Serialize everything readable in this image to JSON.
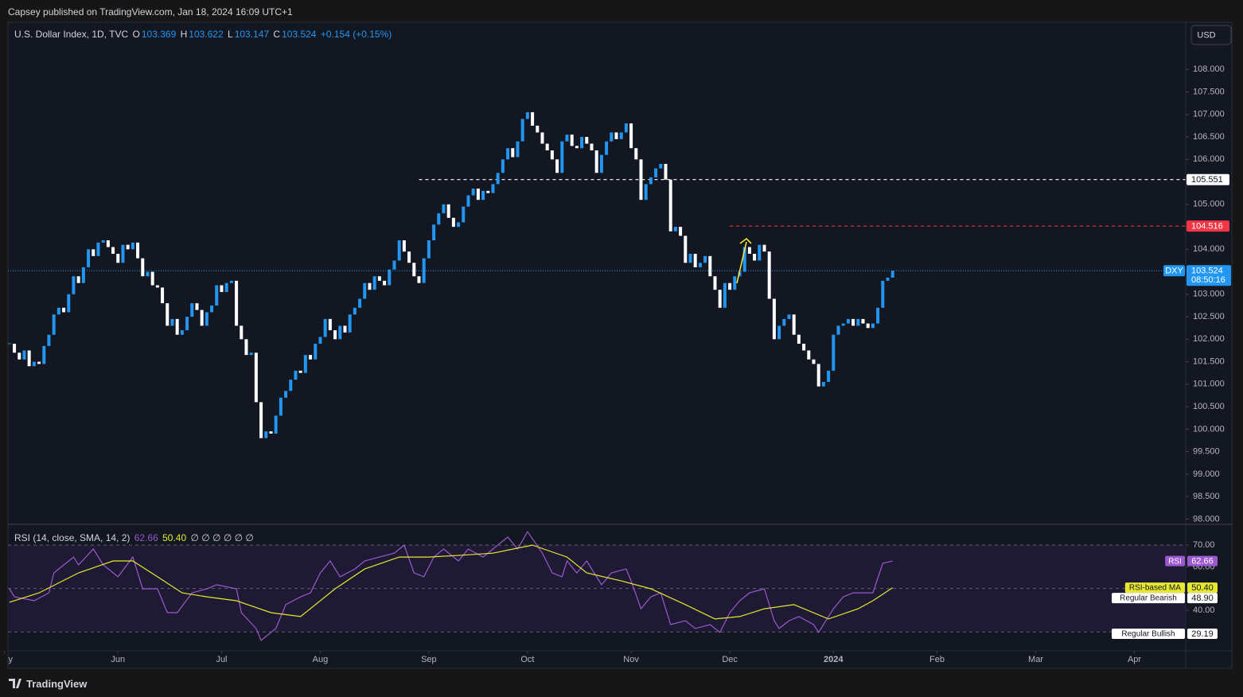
{
  "publisher": "Capsey published on TradingView.com, Jan 18, 2024 16:09 UTC+1",
  "brand": "TradingView",
  "currency_button": "USD",
  "chart_data": [
    {
      "type": "candlestick",
      "title": "U.S. Dollar Index, 1D, TVC",
      "ohlc": [
        {
          "name": "O",
          "value": 103.369
        },
        {
          "name": "H",
          "value": 103.622
        },
        {
          "name": "L",
          "value": 103.147
        },
        {
          "name": "C",
          "value": 103.524
        }
      ],
      "change": "+0.154 (+0.15%)",
      "symbol": "DXY",
      "countdown": "08:50:16",
      "up_color": "#2196f3",
      "down_color": "#ffffff",
      "values": [
        101.9,
        101.7,
        101.55,
        101.75,
        101.4,
        101.5,
        101.45,
        101.85,
        102.1,
        102.55,
        102.7,
        102.6,
        103.0,
        103.4,
        103.25,
        103.6,
        104.0,
        103.85,
        104.15,
        104.2,
        104.05,
        103.9,
        103.7,
        104.1,
        104.0,
        104.15,
        103.8,
        103.4,
        103.5,
        103.2,
        103.15,
        102.8,
        102.3,
        102.45,
        102.1,
        102.2,
        102.5,
        102.8,
        102.65,
        102.3,
        102.6,
        102.75,
        103.2,
        103.05,
        103.25,
        103.3,
        102.3,
        102.0,
        101.65,
        101.7,
        100.6,
        99.8,
        99.95,
        99.9,
        100.3,
        100.7,
        100.85,
        101.1,
        101.3,
        101.25,
        101.65,
        101.55,
        101.9,
        102.05,
        102.45,
        102.2,
        102.0,
        102.3,
        102.15,
        102.55,
        102.7,
        102.9,
        103.25,
        103.1,
        103.4,
        103.3,
        103.2,
        103.55,
        103.75,
        104.2,
        103.95,
        103.7,
        103.4,
        103.25,
        103.8,
        104.2,
        104.55,
        104.8,
        105.0,
        104.7,
        104.5,
        104.6,
        104.95,
        105.2,
        105.35,
        105.1,
        105.3,
        105.25,
        105.45,
        105.7,
        106.0,
        106.25,
        106.05,
        106.4,
        106.9,
        107.05,
        106.75,
        106.6,
        106.35,
        106.2,
        106.0,
        105.7,
        106.4,
        106.55,
        106.3,
        106.25,
        106.5,
        106.35,
        106.2,
        105.7,
        106.1,
        106.4,
        106.6,
        106.45,
        106.6,
        106.8,
        106.25,
        106.0,
        105.1,
        105.45,
        105.6,
        105.8,
        105.9,
        105.55,
        104.4,
        104.5,
        104.3,
        103.7,
        103.9,
        103.6,
        103.7,
        103.85,
        103.4,
        103.1,
        102.7,
        103.25,
        103.1,
        103.4,
        103.5,
        104.05,
        103.9,
        103.75,
        104.1,
        103.95,
        102.9,
        102.0,
        102.3,
        102.45,
        102.55,
        102.1,
        101.9,
        101.75,
        101.55,
        101.45,
        100.95,
        101.05,
        101.3,
        102.1,
        102.3,
        102.35,
        102.45,
        102.3,
        102.45,
        102.35,
        102.25,
        102.35,
        102.7,
        103.3,
        103.37,
        103.524
      ],
      "levels": [
        {
          "value": 105.551,
          "start": 83,
          "color": "#ffffff"
        },
        {
          "value": 104.516,
          "start": 146,
          "color": "#f23645"
        }
      ],
      "xlim": [
        -0.3,
        238.4
      ],
      "ylim": [
        97.9,
        109.05
      ],
      "yticks": [
        {
          "value": 98,
          "label": "98.000"
        },
        {
          "value": 98.5,
          "label": "98.500"
        },
        {
          "value": 99,
          "label": "99.000"
        },
        {
          "value": 99.5,
          "label": "99.500"
        },
        {
          "value": 100,
          "label": "100.000"
        },
        {
          "value": 100.5,
          "label": "100.500"
        },
        {
          "value": 101,
          "label": "101.000"
        },
        {
          "value": 101.5,
          "label": "101.500"
        },
        {
          "value": 102,
          "label": "102.000"
        },
        {
          "value": 102.5,
          "label": "102.500"
        },
        {
          "value": 103,
          "label": "103.000"
        },
        {
          "value": 103.5,
          "label": "103.500"
        },
        {
          "value": 104,
          "label": "104.000"
        },
        {
          "value": 104.5,
          "label": "104.500"
        },
        {
          "value": 105,
          "label": "105.000"
        },
        {
          "value": 105.5,
          "label": "105.500"
        },
        {
          "value": 106,
          "label": "106.000"
        },
        {
          "value": 106.5,
          "label": "106.500"
        },
        {
          "value": 107,
          "label": "107.000"
        },
        {
          "value": 107.5,
          "label": "107.500"
        },
        {
          "value": 108,
          "label": "108.000"
        }
      ]
    },
    {
      "type": "line",
      "title": "RSI (14, close, SMA, 14, 2)",
      "inputs": "∅ ∅ ∅ ∅ ∅ ∅",
      "series": [
        {
          "name": "RSI",
          "color": "#9c58d0",
          "x": [
            0,
            1,
            5,
            8,
            9,
            13,
            14,
            17,
            19,
            22,
            25,
            27,
            30,
            32,
            34,
            37,
            40,
            42,
            46,
            47,
            50,
            51,
            54,
            56,
            59,
            61,
            63,
            65,
            67,
            70,
            72,
            75,
            78,
            80,
            82,
            84,
            86,
            88,
            91,
            93,
            96,
            98,
            101,
            103,
            105,
            108,
            110,
            112,
            113,
            115,
            117,
            120,
            122,
            125,
            126,
            128,
            130,
            132,
            134,
            137,
            139,
            142,
            144,
            146,
            148,
            150,
            153,
            155,
            156,
            158,
            160,
            163,
            164,
            167,
            169,
            171,
            174,
            175,
            177,
            179
          ],
          "values": [
            49.9,
            46.2,
            44.4,
            48.0,
            57.2,
            64.5,
            60.9,
            68.2,
            60.9,
            55.4,
            64.5,
            49.9,
            49.9,
            38.9,
            38.9,
            48.0,
            49.9,
            51.7,
            49.9,
            38.9,
            31.6,
            26.1,
            31.6,
            42.6,
            46.2,
            48.0,
            57.2,
            62.7,
            55.4,
            59.0,
            62.7,
            64.5,
            66.3,
            70.0,
            57.2,
            55.4,
            64.5,
            68.2,
            62.7,
            68.2,
            64.5,
            68.2,
            73.7,
            68.2,
            76.2,
            66.3,
            57.2,
            55.4,
            62.7,
            57.2,
            62.7,
            51.7,
            57.2,
            59.0,
            53.5,
            40.7,
            46.2,
            48.0,
            33.4,
            35.2,
            31.6,
            33.4,
            29.8,
            38.9,
            44.4,
            48.0,
            49.9,
            35.2,
            31.6,
            35.2,
            37.1,
            33.4,
            29.8,
            40.7,
            46.2,
            48.0,
            48.0,
            48.0,
            61.6,
            62.66
          ]
        },
        {
          "name": "RSI-based MA",
          "color": "#e5e82f",
          "x": [
            0,
            6,
            14,
            21,
            25,
            30,
            35,
            40,
            46,
            53,
            59,
            66,
            72,
            79,
            85,
            92,
            98,
            106,
            113,
            117,
            124,
            130,
            137,
            143,
            148,
            153,
            159,
            166,
            172,
            175,
            179
          ],
          "values": [
            43.7,
            48.0,
            57.2,
            62.7,
            62.7,
            55.4,
            48.0,
            46.2,
            44.4,
            38.9,
            37.1,
            49.9,
            59.0,
            64.5,
            64.5,
            65.4,
            66.3,
            70.0,
            64.5,
            57.2,
            53.5,
            49.9,
            42.6,
            36.0,
            37.1,
            40.7,
            42.6,
            36.0,
            40.7,
            44.4,
            50.4
          ]
        }
      ],
      "markers": [
        {
          "value": 62.66,
          "color": "#9c58d0"
        },
        {
          "value": 50.4,
          "label": "50.40",
          "color": "#e5e82f"
        },
        {
          "name": "Regular Bearish",
          "value": 48.9,
          "label": "48.90",
          "color": "#ffffff"
        },
        {
          "name": "Regular Bullish",
          "value": 29.19,
          "color": "#ffffff"
        }
      ],
      "levels": [
        70,
        50,
        30
      ],
      "band_color": "#1f1a33",
      "xlim": [
        -0.3,
        238.4
      ],
      "ylim": [
        21.3,
        79.2
      ],
      "yticks": [
        {
          "value": 70,
          "label": "70.00"
        },
        {
          "value": 60,
          "label": "60.00"
        },
        {
          "value": 40,
          "label": "40.00"
        }
      ],
      "xticks": [
        {
          "value": -1,
          "label": "May"
        },
        {
          "value": 22,
          "label": "Jun"
        },
        {
          "value": 43,
          "label": "Jul"
        },
        {
          "value": 63,
          "label": "Aug"
        },
        {
          "value": 85,
          "label": "Sep"
        },
        {
          "value": 105,
          "label": "Oct"
        },
        {
          "value": 126,
          "label": "Nov"
        },
        {
          "value": 146,
          "label": "Dec"
        },
        {
          "value": 167,
          "label": "2024"
        },
        {
          "value": 188,
          "label": "Feb"
        },
        {
          "value": 208,
          "label": "Mar"
        },
        {
          "value": 228,
          "label": "Apr"
        }
      ]
    }
  ]
}
